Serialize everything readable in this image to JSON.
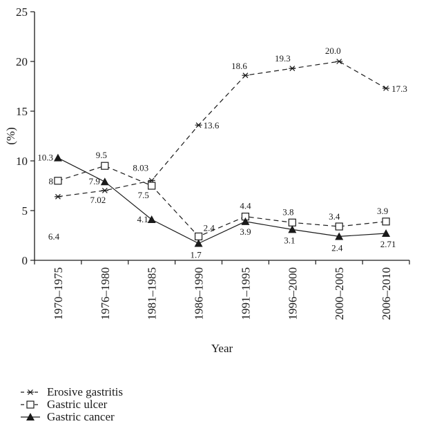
{
  "chart_data": {
    "type": "line",
    "categories": [
      "1970–1975",
      "1976–1980",
      "1981–1985",
      "1986–1990",
      "1991–1995",
      "1996–2000",
      "2000–2005",
      "2006–2010"
    ],
    "xlabel": "Year",
    "ylabel": "(%)",
    "ylim": [
      0,
      25
    ],
    "yticks": [
      "0",
      "5",
      "10",
      "15",
      "20",
      "25"
    ],
    "grid": false,
    "legend_position": "bottom-left",
    "series": [
      {
        "name": "Erosive gastritis",
        "marker": "asterisk",
        "line": "dashed",
        "values": [
          6.4,
          7.02,
          8.03,
          13.6,
          18.6,
          19.3,
          20.0,
          17.3
        ],
        "labels": [
          "6.4",
          "7.02",
          "8.03",
          "13.6",
          "18.6",
          "19.3",
          "20.0",
          "17.3"
        ]
      },
      {
        "name": "Gastric ulcer",
        "marker": "open-square",
        "line": "dashed",
        "values": [
          8,
          9.5,
          7.5,
          2.4,
          4.4,
          3.8,
          3.4,
          3.9
        ],
        "labels": [
          "8",
          "9.5",
          "7.5",
          "2.4",
          "4.4",
          "3.8",
          "3.4",
          "3.9"
        ]
      },
      {
        "name": "Gastric cancer",
        "marker": "filled-triangle",
        "line": "solid",
        "values": [
          10.3,
          7.9,
          4.1,
          1.7,
          3.9,
          3.1,
          2.4,
          2.71
        ],
        "labels": [
          "10.3",
          "7.9",
          "4.1",
          "1.7",
          "3.9",
          "3.1",
          "2.4",
          "2.71"
        ]
      }
    ]
  }
}
